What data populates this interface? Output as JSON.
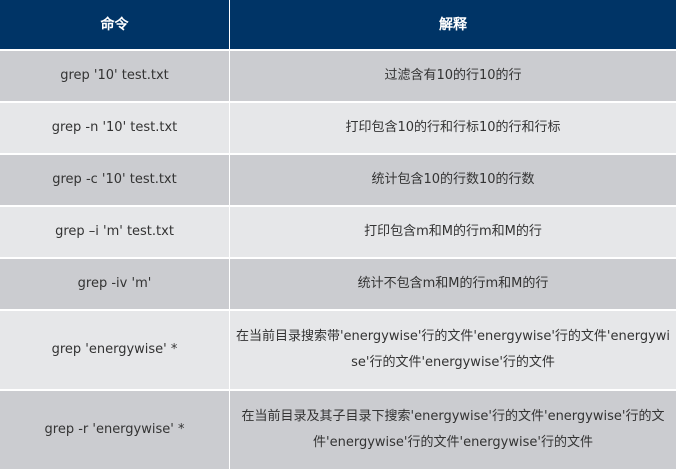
{
  "table": {
    "headers": [
      "命令",
      "解释"
    ],
    "rows": [
      {
        "command": "grep '10' test.txt",
        "explanation": "过滤含有10的行10的行"
      },
      {
        "command": "grep -n '10' test.txt",
        "explanation": "打印包含10的行和行标10的行和行标"
      },
      {
        "command": "grep -c '10' test.txt",
        "explanation": "统计包含10的行数10的行数"
      },
      {
        "command": "grep –i 'm' test.txt",
        "explanation": "打印包含m和M的行m和M的行"
      },
      {
        "command": "grep -iv 'm'",
        "explanation": "统计不包含m和M的行m和M的行"
      },
      {
        "command": "grep 'energywise' *",
        "explanation": "在当前目录搜索带'energywise'行的文件'energywise'行的文件'energywise'行的文件'energywise'行的文件"
      },
      {
        "command": "grep -r 'energywise' *",
        "explanation": "在当前目录及其子目录下搜索'energywise'行的文件'energywise'行的文件'energywise'行的文件'energywise'行的文件"
      }
    ]
  },
  "colors": {
    "header": "#003466",
    "row_odd": "#cbccd0",
    "row_even": "#e6e7e9"
  }
}
